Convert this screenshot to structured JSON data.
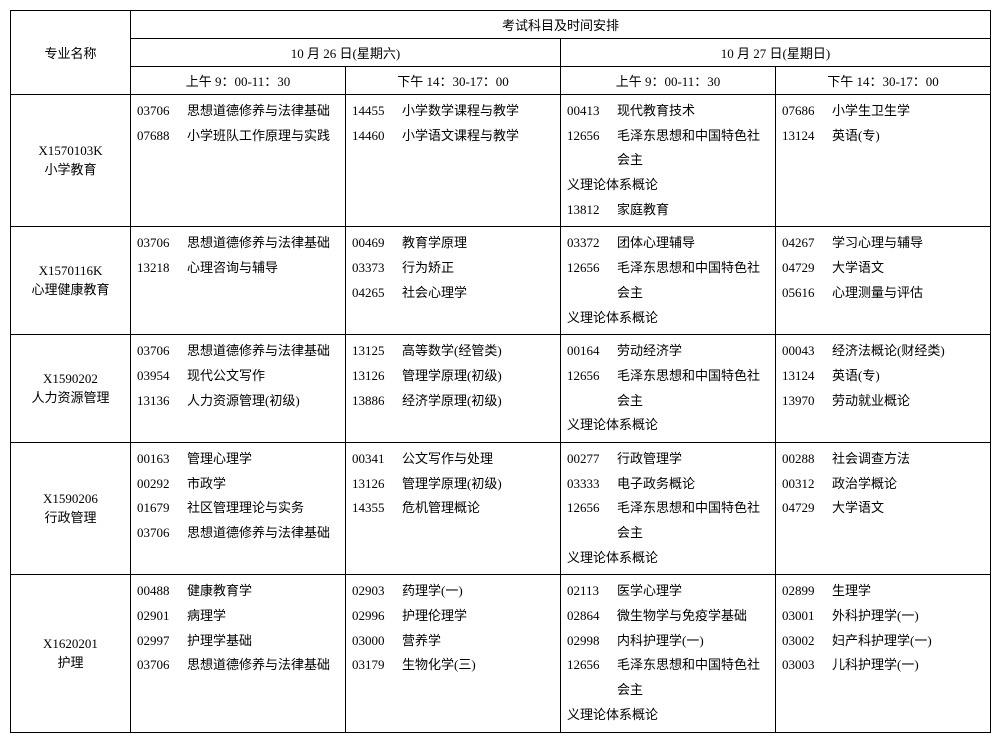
{
  "header": {
    "major_label": "专业名称",
    "schedule_title": "考试科目及时间安排",
    "day1": "10 月 26 日(星期六)",
    "day2": "10 月 27 日(星期日)",
    "slot_am_1": "上午 9：00-11：30",
    "slot_pm_1": "下午 14：30-17：00",
    "slot_am_2": "上午 9：00-11：30",
    "slot_pm_2": "下午 14：30-17：00"
  },
  "rows": [
    {
      "major_code": "X1570103K",
      "major_name": "小学教育",
      "slots": [
        [
          {
            "code": "03706",
            "name": "思想道德修养与法律基础"
          },
          {
            "code": "07688",
            "name": "小学班队工作原理与实践"
          }
        ],
        [
          {
            "code": "14455",
            "name": "小学数学课程与教学"
          },
          {
            "code": "14460",
            "name": "小学语文课程与教学"
          }
        ],
        [
          {
            "code": "00413",
            "name": "现代教育技术"
          },
          {
            "code": "12656",
            "name": "毛泽东思想和中国特色社会主",
            "cont": "义理论体系概论"
          },
          {
            "code": "13812",
            "name": "家庭教育"
          }
        ],
        [
          {
            "code": "07686",
            "name": "小学生卫生学"
          },
          {
            "code": "13124",
            "name": "英语(专)"
          }
        ]
      ]
    },
    {
      "major_code": "X1570116K",
      "major_name": "心理健康教育",
      "slots": [
        [
          {
            "code": "03706",
            "name": "思想道德修养与法律基础"
          },
          {
            "code": "13218",
            "name": "心理咨询与辅导"
          }
        ],
        [
          {
            "code": "00469",
            "name": "教育学原理"
          },
          {
            "code": "03373",
            "name": "行为矫正"
          },
          {
            "code": "04265",
            "name": "社会心理学"
          }
        ],
        [
          {
            "code": "03372",
            "name": "团体心理辅导"
          },
          {
            "code": "12656",
            "name": "毛泽东思想和中国特色社会主",
            "cont": "义理论体系概论"
          }
        ],
        [
          {
            "code": "04267",
            "name": "学习心理与辅导"
          },
          {
            "code": "04729",
            "name": "大学语文"
          },
          {
            "code": "05616",
            "name": "心理测量与评估"
          }
        ]
      ]
    },
    {
      "major_code": "X1590202",
      "major_name": "人力资源管理",
      "slots": [
        [
          {
            "code": "03706",
            "name": "思想道德修养与法律基础"
          },
          {
            "code": "03954",
            "name": "现代公文写作"
          },
          {
            "code": "13136",
            "name": "人力资源管理(初级)"
          }
        ],
        [
          {
            "code": "13125",
            "name": "高等数学(经管类)"
          },
          {
            "code": "13126",
            "name": "管理学原理(初级)"
          },
          {
            "code": "13886",
            "name": "经济学原理(初级)"
          }
        ],
        [
          {
            "code": "00164",
            "name": "劳动经济学"
          },
          {
            "code": "12656",
            "name": "毛泽东思想和中国特色社会主",
            "cont": "义理论体系概论"
          }
        ],
        [
          {
            "code": "00043",
            "name": "经济法概论(财经类)"
          },
          {
            "code": "13124",
            "name": "英语(专)"
          },
          {
            "code": "13970",
            "name": "劳动就业概论"
          }
        ]
      ]
    },
    {
      "major_code": "X1590206",
      "major_name": "行政管理",
      "slots": [
        [
          {
            "code": "00163",
            "name": "管理心理学"
          },
          {
            "code": "00292",
            "name": "市政学"
          },
          {
            "code": "01679",
            "name": "社区管理理论与实务"
          },
          {
            "code": "03706",
            "name": "思想道德修养与法律基础"
          }
        ],
        [
          {
            "code": "00341",
            "name": "公文写作与处理"
          },
          {
            "code": "13126",
            "name": "管理学原理(初级)"
          },
          {
            "code": "14355",
            "name": "危机管理概论"
          }
        ],
        [
          {
            "code": "00277",
            "name": "行政管理学"
          },
          {
            "code": "03333",
            "name": "电子政务概论"
          },
          {
            "code": "12656",
            "name": "毛泽东思想和中国特色社会主",
            "cont": "义理论体系概论"
          }
        ],
        [
          {
            "code": "00288",
            "name": "社会调查方法"
          },
          {
            "code": "00312",
            "name": "政治学概论"
          },
          {
            "code": "04729",
            "name": "大学语文"
          }
        ]
      ]
    },
    {
      "major_code": "X1620201",
      "major_name": "护理",
      "slots": [
        [
          {
            "code": "00488",
            "name": "健康教育学"
          },
          {
            "code": "02901",
            "name": "病理学"
          },
          {
            "code": "02997",
            "name": "护理学基础"
          },
          {
            "code": "03706",
            "name": "思想道德修养与法律基础"
          }
        ],
        [
          {
            "code": "02903",
            "name": "药理学(一)"
          },
          {
            "code": "02996",
            "name": "护理伦理学"
          },
          {
            "code": "03000",
            "name": "营养学"
          },
          {
            "code": "03179",
            "name": "生物化学(三)"
          }
        ],
        [
          {
            "code": "02113",
            "name": "医学心理学"
          },
          {
            "code": "02864",
            "name": "微生物学与免疫学基础"
          },
          {
            "code": "02998",
            "name": "内科护理学(一)"
          },
          {
            "code": "12656",
            "name": "毛泽东思想和中国特色社会主",
            "cont": "义理论体系概论"
          }
        ],
        [
          {
            "code": "02899",
            "name": "生理学"
          },
          {
            "code": "03001",
            "name": "外科护理学(一)"
          },
          {
            "code": "03002",
            "name": "妇产科护理学(一)"
          },
          {
            "code": "03003",
            "name": "儿科护理学(一)"
          }
        ]
      ]
    }
  ]
}
